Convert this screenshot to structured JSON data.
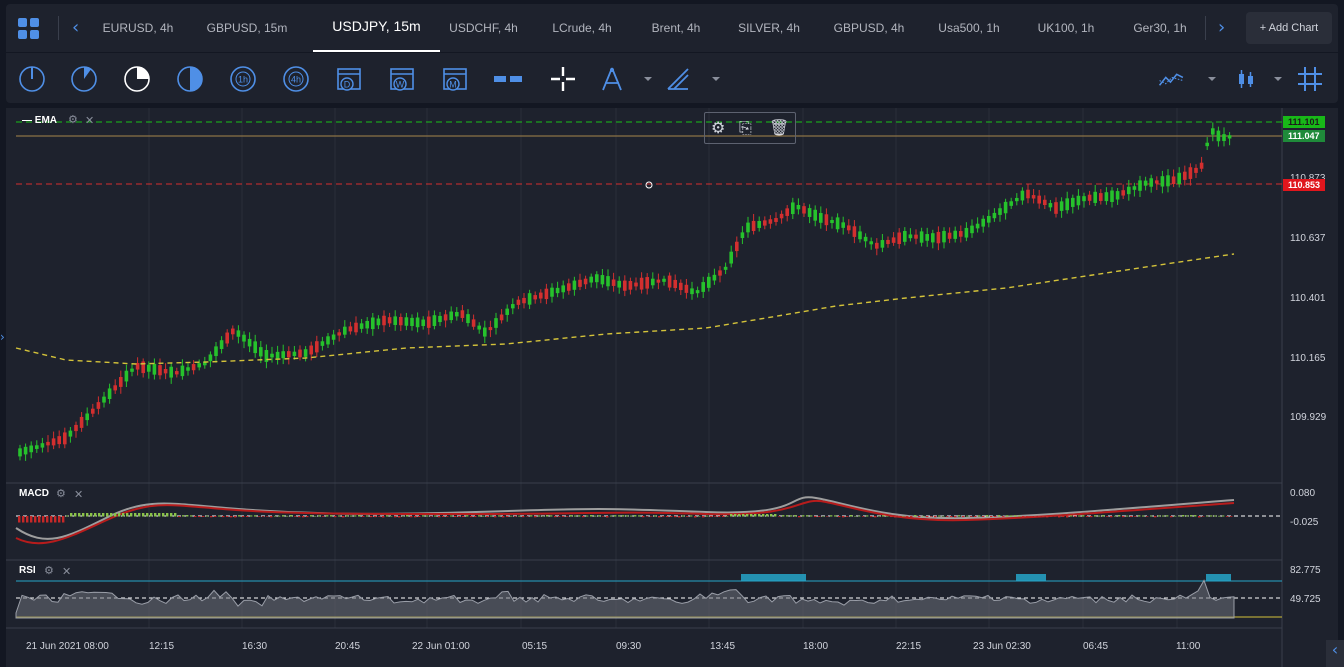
{
  "tabs": [
    {
      "label": "EURUSD, 4h",
      "active": false
    },
    {
      "label": "GBPUSD, 15m",
      "active": false
    },
    {
      "label": "USDJPY, 15m",
      "active": true
    },
    {
      "label": "USDCHF, 4h",
      "active": false
    },
    {
      "label": "LCrude, 4h",
      "active": false
    },
    {
      "label": "Brent, 4h",
      "active": false
    },
    {
      "label": "SILVER, 4h",
      "active": false
    },
    {
      "label": "GBPUSD, 4h",
      "active": false
    },
    {
      "label": "Usa500, 1h",
      "active": false
    },
    {
      "label": "UK100, 1h",
      "active": false
    },
    {
      "label": "Ger30, 1h",
      "active": false
    }
  ],
  "add_chart": "+ Add Chart",
  "toolbar": {
    "timeframes": [
      "1m-icon",
      "5m-icon",
      "15m-icon",
      "30m-icon",
      "1h",
      "4h",
      "D",
      "W",
      "M"
    ],
    "tools": [
      "compare-icon",
      "crosshair-icon",
      "fib-icon",
      "drawing-icon",
      "chart-style-icon",
      "candles-icon",
      "grid-icon"
    ]
  },
  "main_pane": {
    "indicator": "EMA",
    "price_axis": [
      "111.101",
      "111.047",
      "110.873",
      "110.853",
      "110.637",
      "110.401",
      "110.165",
      "109.929"
    ],
    "tags": {
      "top_green": "111.101",
      "last_price": "111.047",
      "red_line": "110.853",
      "behind_red": "110.873"
    }
  },
  "macd_pane": {
    "label": "MACD",
    "axis": [
      "0.080",
      "-0.025"
    ]
  },
  "rsi_pane": {
    "label": "RSI",
    "axis": [
      "82.775",
      "49.725"
    ]
  },
  "time_axis": [
    "21 Jun 2021 08:00",
    "12:15",
    "16:30",
    "20:45",
    "22 Jun 01:00",
    "05:15",
    "09:30",
    "13:45",
    "18:00",
    "22:15",
    "23 Jun 02:30",
    "06:45",
    "11:00"
  ],
  "colors": {
    "bull": "#26c22c",
    "bear": "#d32f2f",
    "ema": "#d4c33a",
    "accent": "#4f8fe6",
    "macd_line": "#b71c1c",
    "signal_line": "#9e9e9e",
    "rsi_band": "#26a5c9"
  }
}
